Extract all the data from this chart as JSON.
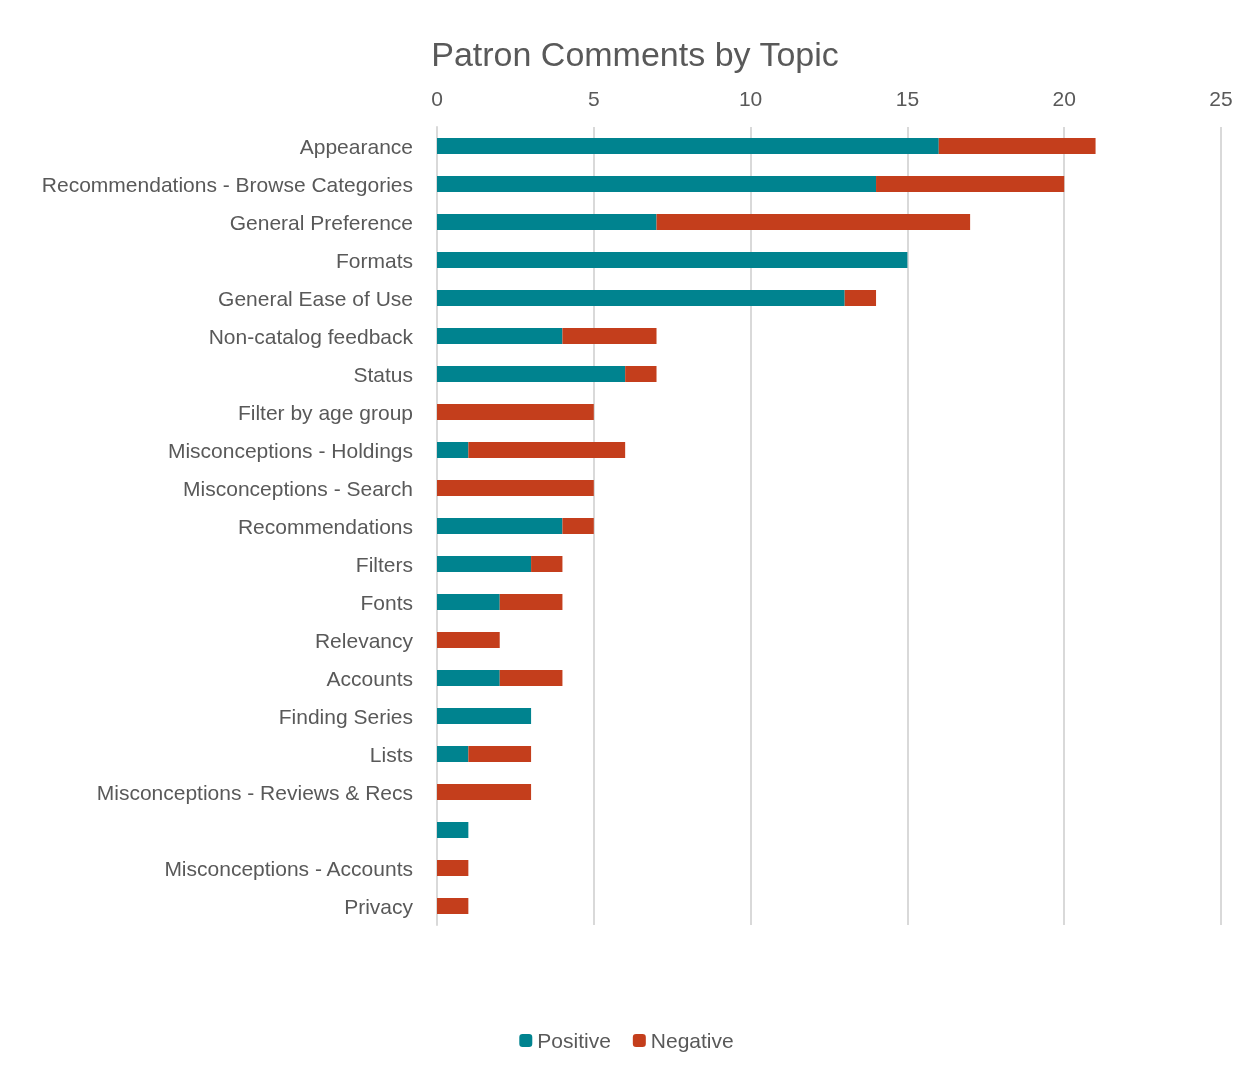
{
  "chart_data": {
    "type": "bar",
    "title": "Patron Comments by Topic",
    "orientation": "horizontal",
    "stacked": true,
    "categories": [
      "Appearance",
      "Recommendations - Browse Categories",
      "General Preference",
      "Formats",
      "General Ease of Use",
      "Non-catalog feedback",
      "Status",
      "Filter by age group",
      "Misconceptions - Holdings",
      "Misconceptions - Search",
      "Recommendations",
      "Filters",
      "Fonts",
      "Relevancy",
      "Accounts",
      "Finding Series",
      "Lists",
      "Misconceptions - Reviews & Recs",
      null,
      "Misconceptions - Accounts",
      "Privacy"
    ],
    "series": [
      {
        "name": "Positive",
        "color": "#00838f",
        "values": [
          16,
          14,
          7,
          15,
          13,
          4,
          6,
          0,
          1,
          0,
          4,
          3,
          2,
          0,
          2,
          3,
          1,
          0,
          1,
          0,
          0
        ]
      },
      {
        "name": "Negative",
        "color": "#c43e1c",
        "values": [
          5,
          6,
          10,
          0,
          1,
          3,
          1,
          5,
          5,
          5,
          1,
          1,
          2,
          2,
          2,
          0,
          2,
          3,
          0,
          1,
          1
        ]
      }
    ],
    "xlim": [
      0,
      25
    ],
    "xticks": [
      0,
      5,
      10,
      15,
      20,
      25
    ],
    "grid": "x",
    "legend": "bottom"
  }
}
